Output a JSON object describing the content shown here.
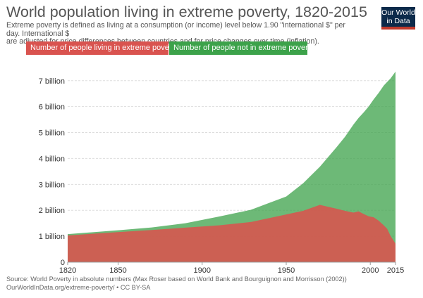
{
  "header": {
    "title": "World population living in extreme poverty, 1820-2015",
    "subtitle_line1": "Extreme poverty is defined as living at a consumption (or income) level below 1.90 \"international $\" per day. International $",
    "subtitle_line2": "are adjusted for price differences between countries and for price changes over time (inflation)."
  },
  "logo": {
    "line1": "Our World",
    "line2": "in Data",
    "bg": "#0c2a4a",
    "accent": "#c0392b"
  },
  "legend": {
    "poverty_label": "Number of people living in extreme poverty",
    "not_poverty_label": "Number of people not in extreme poverty"
  },
  "footer": {
    "source_line1": "Source: World Poverty in absolute numbers (Max Roser based on World Bank and Bourguignon and Morrisson (2002))",
    "source_line2": "OurWorldInData.org/extreme-poverty/ • CC BY-SA"
  },
  "colors": {
    "poverty": "#d9534f",
    "not_poverty": "#3ca24a"
  },
  "chart_data": {
    "type": "area",
    "title": "World population living in extreme poverty, 1820-2015",
    "xlabel": "",
    "ylabel": "",
    "stacked": true,
    "xlim": [
      1820,
      2015
    ],
    "ylim": [
      0,
      7.4
    ],
    "grid": true,
    "legend_position": "top-left",
    "x_ticks": [
      1820,
      1850,
      1900,
      1950,
      2000,
      2015
    ],
    "y_ticks": [
      {
        "value": 0,
        "label": "0"
      },
      {
        "value": 1,
        "label": "1 billion"
      },
      {
        "value": 2,
        "label": "2 billion"
      },
      {
        "value": 3,
        "label": "3 billion"
      },
      {
        "value": 4,
        "label": "4 billion"
      },
      {
        "value": 5,
        "label": "5 billion"
      },
      {
        "value": 6,
        "label": "6 billion"
      },
      {
        "value": 7,
        "label": "7 billion"
      }
    ],
    "x": [
      1820,
      1850,
      1870,
      1890,
      1910,
      1929,
      1950,
      1960,
      1970,
      1980,
      1985,
      1990,
      1993,
      1996,
      1999,
      2002,
      2005,
      2008,
      2010,
      2012,
      2015
    ],
    "series": [
      {
        "name": "Number of people living in extreme poverty",
        "values": [
          1.03,
          1.16,
          1.24,
          1.33,
          1.42,
          1.55,
          1.84,
          1.98,
          2.21,
          2.06,
          1.98,
          1.91,
          1.96,
          1.86,
          1.77,
          1.73,
          1.6,
          1.42,
          1.29,
          1.02,
          0.71
        ]
      },
      {
        "name": "Number of people not in extreme poverty",
        "values": [
          0.05,
          0.07,
          0.1,
          0.17,
          0.34,
          0.47,
          0.69,
          1.06,
          1.47,
          2.38,
          2.86,
          3.4,
          3.6,
          3.91,
          4.23,
          4.55,
          4.93,
          5.39,
          5.66,
          6.06,
          6.64
        ]
      }
    ]
  }
}
